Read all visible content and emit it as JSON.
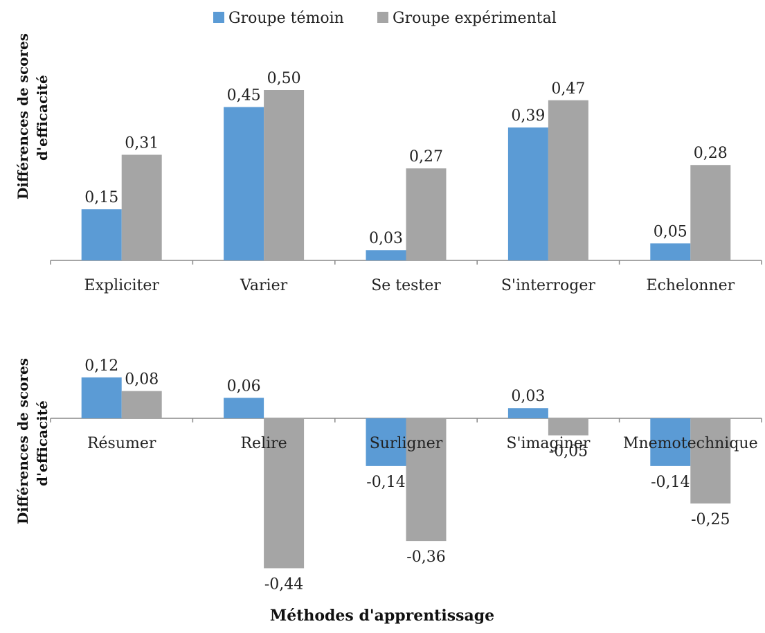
{
  "legend": {
    "series_a": "Groupe témoin",
    "series_b": "Groupe expérimental"
  },
  "colors": {
    "series_a": "#5B9BD5",
    "series_b": "#A5A5A5",
    "axis": "#888888"
  },
  "panels": {
    "top": {
      "ylabel_line1": "Différences de scores",
      "ylabel_line2": "d'efficacité"
    },
    "bottom": {
      "ylabel_line1": "Différences de scores",
      "ylabel_line2": "d'efficacité"
    }
  },
  "xlabel": "Méthodes d'apprentissage",
  "chart_data": [
    {
      "type": "bar",
      "categories": [
        "Expliciter",
        "Varier",
        "Se tester",
        "S'interroger",
        "Echelonner"
      ],
      "series": [
        {
          "name": "Groupe témoin",
          "values": [
            0.15,
            0.45,
            0.03,
            0.39,
            0.05
          ],
          "labels": [
            "0,15",
            "0,45",
            "0,03",
            "0,39",
            "0,05"
          ]
        },
        {
          "name": "Groupe expérimental",
          "values": [
            0.31,
            0.5,
            0.27,
            0.47,
            0.28
          ],
          "labels": [
            "0,31",
            "0,50",
            "0,27",
            "0,47",
            "0,28"
          ]
        }
      ],
      "ylabel": "Différences de scores d'efficacité",
      "grid": false,
      "legend_position": "top"
    },
    {
      "type": "bar",
      "categories": [
        "Résumer",
        "Relire",
        "Surligner",
        "S'imaginer",
        "Mnemotechnique"
      ],
      "series": [
        {
          "name": "Groupe témoin",
          "values": [
            0.12,
            0.06,
            -0.14,
            0.03,
            -0.14
          ],
          "labels": [
            "0,12",
            "0,06",
            "-0,14",
            "0,03",
            "-0,14"
          ]
        },
        {
          "name": "Groupe expérimental",
          "values": [
            0.08,
            -0.44,
            -0.36,
            -0.05,
            -0.25
          ],
          "labels": [
            "0,08",
            "-0,44",
            "-0,36",
            "-0,05",
            "-0,25"
          ]
        }
      ],
      "ylabel": "Différences de scores d'efficacité",
      "xlabel": "Méthodes d'apprentissage",
      "grid": false
    }
  ]
}
